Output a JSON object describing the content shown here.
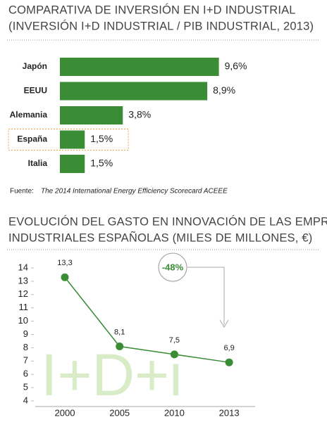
{
  "chart_data": [
    {
      "type": "bar",
      "orientation": "horizontal",
      "title": "COMPARATIVA DE INVERSIÓN EN I+D INDUSTRIAL",
      "subtitle": "(INVERSIÓN I+D INDUSTRIAL / PIB INDUSTRIAL, 2013)",
      "categories": [
        "Japón",
        "EEUU",
        "Alemania",
        "España",
        "Italia"
      ],
      "values": [
        9.6,
        8.9,
        3.8,
        1.5,
        1.5
      ],
      "value_labels": [
        "9,6%",
        "8,9%",
        "3,8%",
        "1,5%",
        "1,5%"
      ],
      "color": "#3a8c35",
      "highlight_color": "#f0a040",
      "highlight_index": 3,
      "source_label": "Fuente:",
      "source": "The 2014 International Energy Efficiency Scorecard ACEEE"
    },
    {
      "type": "line",
      "title": "EVOLUCIÓN DEL GASTO EN INNOVACIÓN DE LAS EMPRESAS",
      "subtitle": "INDUSTRIALES ESPAÑOLAS (MILES DE MILLONES, €)",
      "categories": [
        "2000",
        "2005",
        "2010",
        "2013"
      ],
      "values": [
        13.3,
        8.1,
        7.5,
        6.9
      ],
      "value_labels": [
        "13,3",
        "8,1",
        "7,5",
        "6,9"
      ],
      "color": "#3a8c35",
      "ylim": [
        4,
        14
      ],
      "yticks": [
        4,
        5,
        6,
        7,
        8,
        9,
        10,
        11,
        12,
        13,
        14
      ],
      "annotation": "-48%",
      "watermark": "I+D+i"
    }
  ]
}
